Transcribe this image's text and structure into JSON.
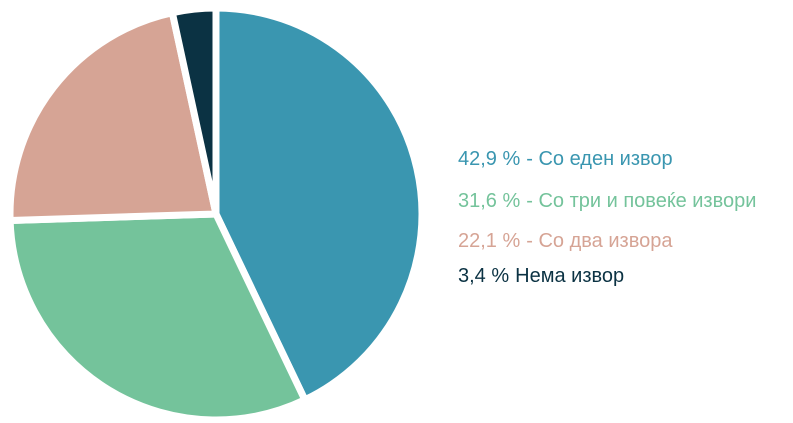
{
  "chart_data": {
    "type": "pie",
    "categories": [
      "- Со еден извор",
      "- Со три и повеќе извори",
      "- Со два извора",
      "Нема извор"
    ],
    "values": [
      42.9,
      31.6,
      22.1,
      3.4
    ],
    "value_labels": [
      "42,9 %",
      "31,6 %",
      "22,1 %",
      "3,4 %"
    ],
    "colors": [
      "#3a96b0",
      "#74c39b",
      "#d6a495",
      "#0b3243"
    ],
    "legend": "right"
  }
}
